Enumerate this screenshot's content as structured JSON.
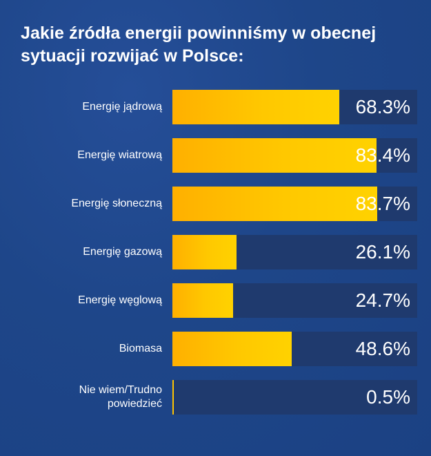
{
  "chart_data": {
    "type": "bar",
    "orientation": "horizontal",
    "title": "Jakie źródła energii powinniśmy w obecnej sytuacji rozwijać w Polsce:",
    "categories": [
      "Energię jądrową",
      "Energię wiatrową",
      "Energię słoneczną",
      "Energię gazową",
      "Energię węglową",
      "Biomasa",
      "Nie wiem/Trudno powiedzieć"
    ],
    "values": [
      68.3,
      83.4,
      83.7,
      26.1,
      24.7,
      48.6,
      0.5
    ],
    "value_labels": [
      "68.3%",
      "83.4%",
      "83.7%",
      "26.1%",
      "24.7%",
      "48.6%",
      "0.5%"
    ],
    "xlim": [
      0,
      100
    ],
    "unit": "%",
    "grid": false,
    "colors": {
      "bar": "#ffc800",
      "track": "#1f3a6e",
      "background": "#1e4689",
      "text": "#ffffff"
    }
  }
}
